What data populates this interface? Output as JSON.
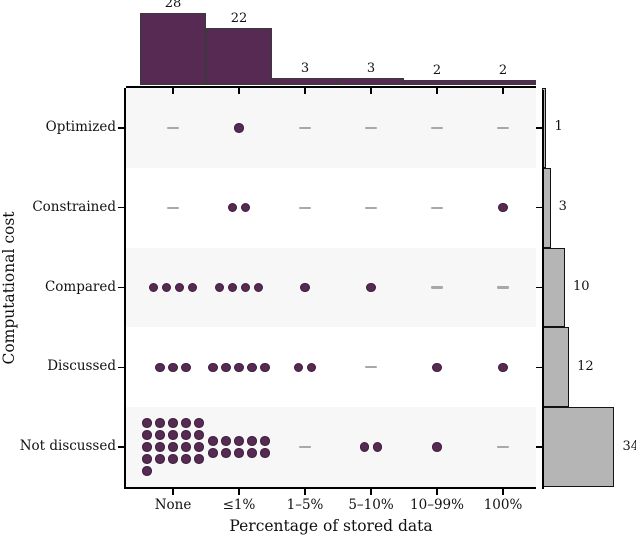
{
  "chart_data": {
    "type": "scatter",
    "variant": "categorical dot-matrix with marginal histograms",
    "xlabel": "Percentage of stored data",
    "ylabel": "Computational cost",
    "x_categories": [
      "None",
      "≤1%",
      "1–5%",
      "5–10%",
      "10–99%",
      "100%"
    ],
    "y_categories": [
      "Optimized",
      "Constrained",
      "Compared",
      "Discussed",
      "Not discussed"
    ],
    "counts_by_row": [
      {
        "row": "Optimized",
        "values": [
          0,
          1,
          0,
          0,
          0,
          0
        ],
        "total": 1
      },
      {
        "row": "Constrained",
        "values": [
          0,
          2,
          0,
          0,
          0,
          1
        ],
        "total": 3
      },
      {
        "row": "Compared",
        "values": [
          4,
          4,
          1,
          1,
          0,
          0
        ],
        "total": 10
      },
      {
        "row": "Discussed",
        "values": [
          3,
          5,
          2,
          0,
          1,
          1
        ],
        "total": 12
      },
      {
        "row": "Not discussed",
        "values": [
          21,
          10,
          0,
          2,
          1,
          0
        ],
        "total": 34
      }
    ],
    "top_histogram": {
      "values": [
        28,
        22,
        3,
        3,
        2,
        2
      ],
      "position": "top margin"
    },
    "right_histogram": {
      "values": [
        1,
        3,
        10,
        12,
        34
      ],
      "position": "right margin"
    },
    "zero_cell_marker": "gray dash",
    "grid": "off",
    "legend": "none",
    "colors": {
      "dot": "#572a54",
      "dot_edge": "#3b1d3a",
      "top_bar_fill": "#572a54",
      "top_bar_edge": "#3a3a3a",
      "right_bar_fill": "#b5b5b5",
      "right_bar_edge": "#141414",
      "row_band": "#f7f7f7",
      "row_band_alt": "#ffffff",
      "zero_dash": "#a8a8a8",
      "axis": "#000000",
      "text": "#1a1a1a"
    }
  }
}
